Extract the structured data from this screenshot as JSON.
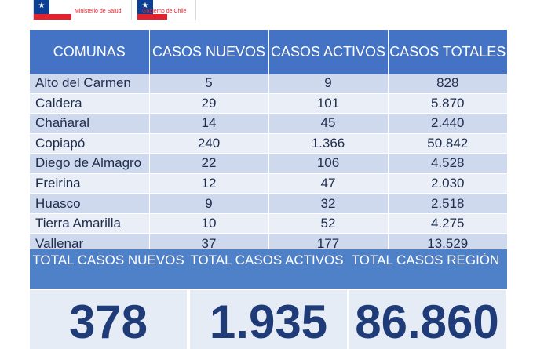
{
  "header": {
    "logo_minsal": "Ministerio de Salud",
    "logo_gob": "Gobierno de Chile"
  },
  "table": {
    "columns": [
      "COMUNAS",
      "CASOS NUEVOS",
      "CASOS ACTIVOS",
      "CASOS TOTALES"
    ],
    "rows": [
      {
        "comuna": "Alto del Carmen",
        "nuevos": "5",
        "activos": "9",
        "totales": "828"
      },
      {
        "comuna": "Caldera",
        "nuevos": "29",
        "activos": "101",
        "totales": "5.870"
      },
      {
        "comuna": "Chañaral",
        "nuevos": "14",
        "activos": "45",
        "totales": "2.440"
      },
      {
        "comuna": "Copiapó",
        "nuevos": "240",
        "activos": "1.366",
        "totales": "50.842"
      },
      {
        "comuna": "Diego de Almagro",
        "nuevos": "22",
        "activos": "106",
        "totales": "4.528"
      },
      {
        "comuna": "Freirina",
        "nuevos": "12",
        "activos": "47",
        "totales": "2.030"
      },
      {
        "comuna": "Huasco",
        "nuevos": "9",
        "activos": "32",
        "totales": "2.518"
      },
      {
        "comuna": "Tierra Amarilla",
        "nuevos": "10",
        "activos": "52",
        "totales": "4.275"
      },
      {
        "comuna": "Vallenar",
        "nuevos": "37",
        "activos": "177",
        "totales": "13.529"
      }
    ]
  },
  "totals": {
    "nuevos_label": "TOTAL CASOS NUEVOS",
    "activos_label": "TOTAL CASOS ACTIVOS",
    "region_label": "TOTAL CASOS REGIÓN",
    "nuevos_value": "378",
    "activos_value": "1.935",
    "region_value": "86.860"
  },
  "colors": {
    "header_blue": "#4472c4",
    "row_light": "#e9eef7",
    "row_dark": "#cfd9ee",
    "total_value": "#1f3b78"
  }
}
